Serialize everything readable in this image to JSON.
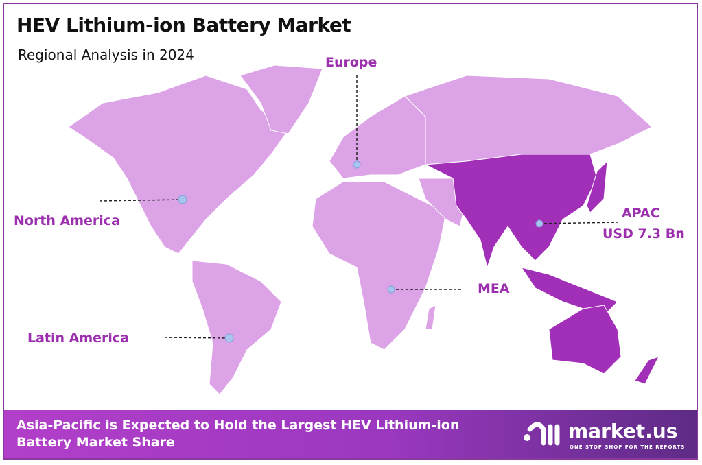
{
  "header": {
    "title": "HEV Lithium-ion Battery Market",
    "subtitle": "Regional Analysis in 2024"
  },
  "colors": {
    "land": "#dca3e7",
    "highlight": "#a22fb7",
    "label": "#9b2fae",
    "marker": "#a9c4ee",
    "border": "#8a3a9e"
  },
  "regions": [
    {
      "name": "North America",
      "highlighted": false
    },
    {
      "name": "Europe",
      "highlighted": false
    },
    {
      "name": "APAC",
      "value": "USD 7.3 Bn",
      "highlighted": true
    },
    {
      "name": "MEA",
      "highlighted": false
    },
    {
      "name": "Latin America",
      "highlighted": false
    }
  ],
  "footer": {
    "text": "Asia-Pacific is Expected to Hold the Largest HEV Lithium-ion Battery Market Share",
    "logo_name": "market.us",
    "logo_tagline": "ONE STOP SHOP FOR THE REPORTS"
  }
}
